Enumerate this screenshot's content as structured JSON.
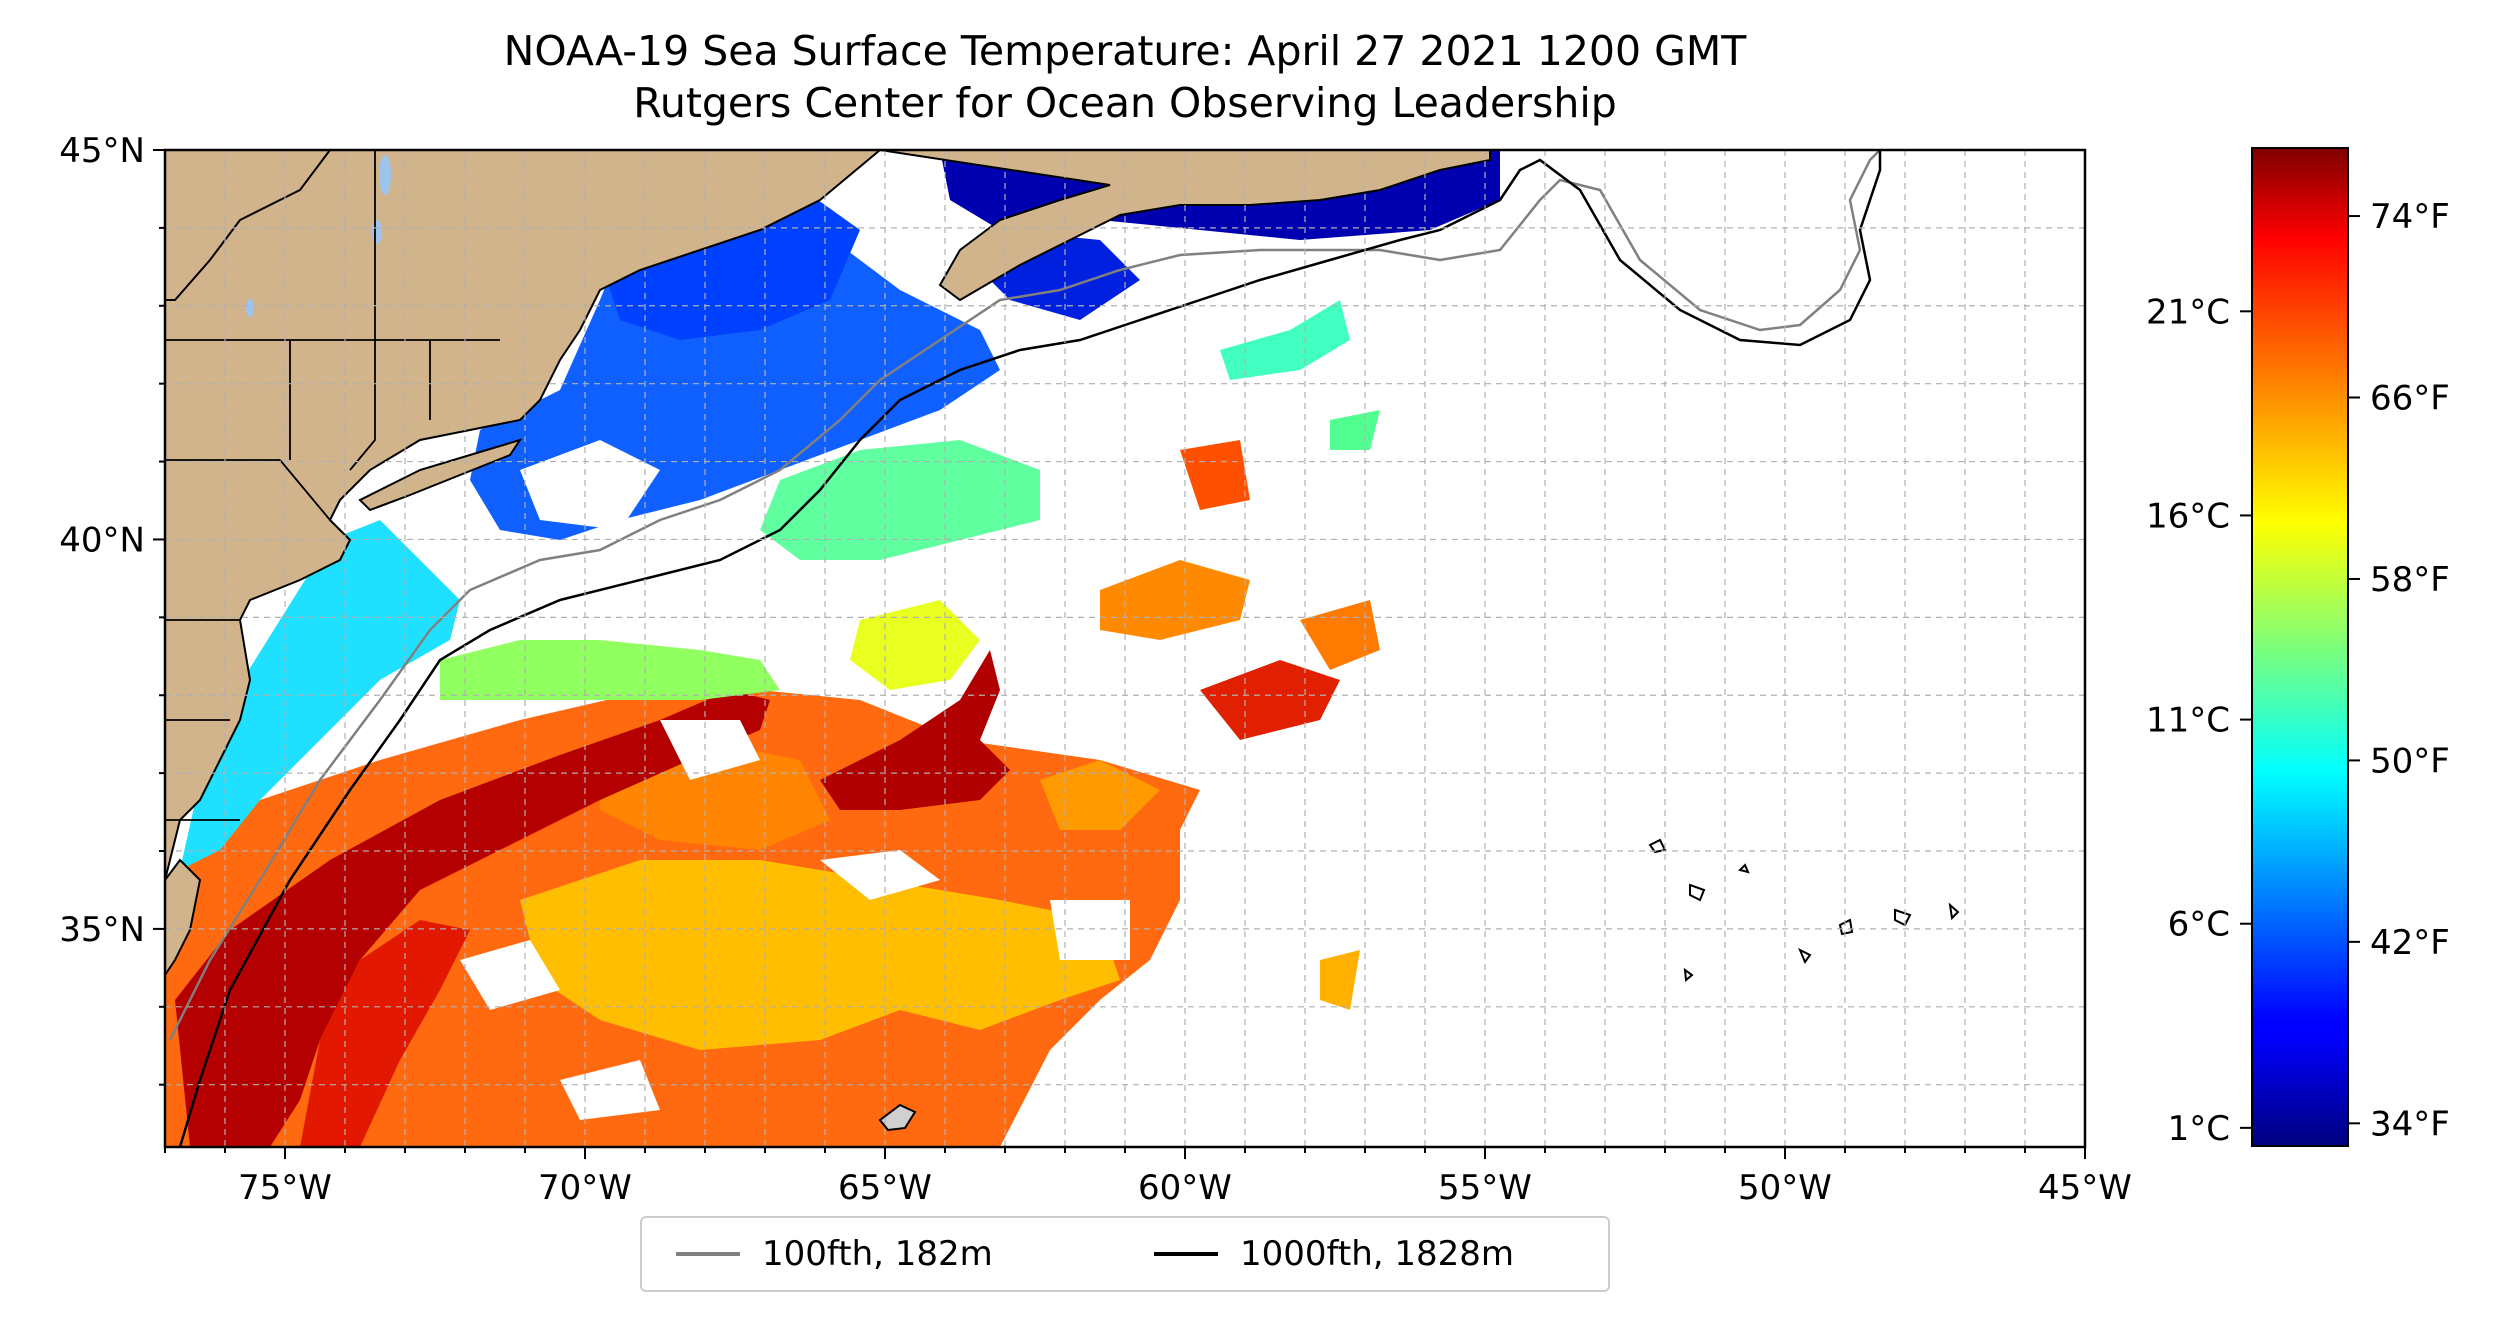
{
  "title": "NOAA-19 Sea Surface Temperature: April 27 2021 1200 GMT",
  "subtitle": "Rutgers Center for Ocean Observing Leadership",
  "map": {
    "lon_range": [
      -77,
      -45
    ],
    "lat_range": [
      32.2,
      45
    ],
    "lon_ticks": [
      {
        "value": -75,
        "label": "75°W"
      },
      {
        "value": -70,
        "label": "70°W"
      },
      {
        "value": -65,
        "label": "65°W"
      },
      {
        "value": -60,
        "label": "60°W"
      },
      {
        "value": -55,
        "label": "55°W"
      },
      {
        "value": -50,
        "label": "50°W"
      },
      {
        "value": -45,
        "label": "45°W"
      }
    ],
    "lat_ticks": [
      {
        "value": 45,
        "label": "45°N"
      },
      {
        "value": 40,
        "label": "40°N"
      },
      {
        "value": 35,
        "label": "35°N"
      }
    ],
    "land_color": "#d2b48c",
    "lake_color": "#9cc4ec",
    "gridlines": true
  },
  "colorbar": {
    "colormap": "jet",
    "celsius_ticks": [
      {
        "value": 1,
        "label": "1°C"
      },
      {
        "value": 6,
        "label": "6°C"
      },
      {
        "value": 11,
        "label": "11°C"
      },
      {
        "value": 16,
        "label": "16°C"
      },
      {
        "value": 21,
        "label": "21°C"
      }
    ],
    "fahrenheit_ticks": [
      {
        "value": 34,
        "label": "34°F"
      },
      {
        "value": 42,
        "label": "42°F"
      },
      {
        "value": 50,
        "label": "50°F"
      },
      {
        "value": 58,
        "label": "58°F"
      },
      {
        "value": 66,
        "label": "66°F"
      },
      {
        "value": 74,
        "label": "74°F"
      }
    ],
    "range_f": [
      33,
      77
    ]
  },
  "legend": {
    "items": [
      {
        "label": "100fth, 182m",
        "color": "#808080"
      },
      {
        "label": "1000fth, 1828m",
        "color": "#000000"
      }
    ]
  }
}
